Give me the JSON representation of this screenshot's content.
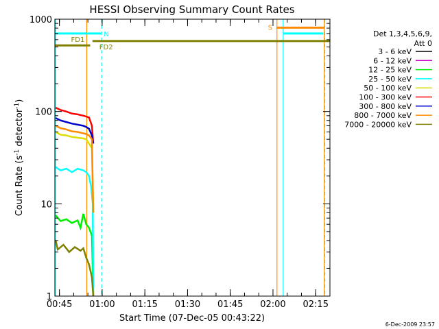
{
  "chart_data": {
    "type": "line",
    "title": "HESSI Observing Summary Count Rates",
    "xlabel": "Start Time (07-Dec-05 00:43:22)",
    "ylabel_main": "Count Rate (s",
    "ylabel_sup1": "-1",
    "ylabel_mid": " detector",
    "ylabel_sup2": "-1",
    "ylabel_end": ")",
    "yscale": "log",
    "ylim": [
      1,
      1000
    ],
    "xlim_minutes": [
      0,
      96.6
    ],
    "x_ticks": [
      {
        "label": "00:45",
        "m": 1.6
      },
      {
        "label": "01:00",
        "m": 16.6
      },
      {
        "label": "01:15",
        "m": 31.6
      },
      {
        "label": "01:30",
        "m": 46.6
      },
      {
        "label": "01:45",
        "m": 61.6
      },
      {
        "label": "02:00",
        "m": 76.6
      },
      {
        "label": "02:15",
        "m": 91.6
      }
    ],
    "y_ticks": [
      {
        "label": "1",
        "v": 1
      },
      {
        "label": "10",
        "v": 10
      },
      {
        "label": "100",
        "v": 100
      },
      {
        "label": "1000",
        "v": 1000
      }
    ],
    "legend_header": [
      "Det 1,3,4,5,6,9,",
      "Att 0"
    ],
    "series": [
      {
        "name": "3 - 6 keV",
        "color": "#000000",
        "values": []
      },
      {
        "name": "6 - 12 keV",
        "color": "#cc00cc",
        "values": []
      },
      {
        "name": "12 - 25 keV",
        "color": "#00ee00",
        "values": [
          [
            0.3,
            7.5
          ],
          [
            2,
            6.5
          ],
          [
            4,
            6.8
          ],
          [
            6,
            6.2
          ],
          [
            8,
            6.6
          ],
          [
            9,
            5.5
          ],
          [
            10,
            7.8
          ],
          [
            11,
            6.0
          ],
          [
            12,
            5.5
          ],
          [
            13,
            4.5
          ],
          [
            13.5,
            1
          ]
        ]
      },
      {
        "name": "25 - 50 keV",
        "color": "#00ffff",
        "values": [
          [
            0.3,
            25
          ],
          [
            2,
            23
          ],
          [
            4,
            24
          ],
          [
            6,
            22
          ],
          [
            8,
            24
          ],
          [
            10,
            23
          ],
          [
            11,
            22
          ],
          [
            12,
            20
          ],
          [
            12.8,
            15
          ],
          [
            13.3,
            10
          ],
          [
            13.5,
            1
          ]
        ]
      },
      {
        "name": "50 - 100 keV",
        "color": "#dddd00",
        "values": [
          [
            0.3,
            60
          ],
          [
            2,
            56
          ],
          [
            4,
            55
          ],
          [
            6,
            53
          ],
          [
            8,
            52
          ],
          [
            10,
            51
          ],
          [
            11,
            50
          ],
          [
            12,
            45
          ],
          [
            13,
            40
          ],
          [
            13.5,
            8
          ]
        ]
      },
      {
        "name": "100 - 300 keV",
        "color": "#ff0000",
        "values": [
          [
            0.3,
            110
          ],
          [
            2,
            104
          ],
          [
            4,
            100
          ],
          [
            6,
            95
          ],
          [
            8,
            93
          ],
          [
            10,
            90
          ],
          [
            11,
            88
          ],
          [
            12,
            86
          ],
          [
            13,
            70
          ],
          [
            13.5,
            45
          ]
        ]
      },
      {
        "name": "300 - 800 keV",
        "color": "#0000cc",
        "values": [
          [
            0.3,
            85
          ],
          [
            2,
            80
          ],
          [
            4,
            77
          ],
          [
            6,
            74
          ],
          [
            8,
            72
          ],
          [
            10,
            70
          ],
          [
            11,
            68
          ],
          [
            12,
            65
          ],
          [
            13,
            55
          ],
          [
            13.5,
            45
          ]
        ]
      },
      {
        "name": "800 - 7000 keV",
        "color": "#ff8c00",
        "values": [
          [
            0.3,
            70
          ],
          [
            2,
            66
          ],
          [
            4,
            64
          ],
          [
            6,
            61
          ],
          [
            8,
            60
          ],
          [
            10,
            58
          ],
          [
            11,
            57
          ],
          [
            12,
            55
          ],
          [
            13,
            50
          ],
          [
            13.5,
            8
          ]
        ]
      },
      {
        "name": "7000 - 20000 keV",
        "color": "#808000",
        "values": [
          [
            0.3,
            4.0
          ],
          [
            1,
            3.2
          ],
          [
            3,
            3.6
          ],
          [
            5,
            3.0
          ],
          [
            7,
            3.4
          ],
          [
            9,
            3.1
          ],
          [
            10,
            3.3
          ],
          [
            11,
            2.6
          ],
          [
            12,
            2.2
          ],
          [
            13,
            1.6
          ],
          [
            13.5,
            1
          ]
        ]
      }
    ],
    "flag_bars": [
      {
        "label": "N",
        "color": "#00ffff",
        "y": 700,
        "x0": 0,
        "x1": 16.2
      },
      {
        "label": "FD1",
        "color": "#808000",
        "y": 520,
        "x0": 0,
        "x1": 12.4
      },
      {
        "label": "FD2",
        "color": "#808000",
        "y": 580,
        "x0": 13.2,
        "x1": 96.6
      },
      {
        "label": "S",
        "color": "#ff8c00",
        "y": 810,
        "x0": 77.8,
        "x1": 94.5
      },
      {
        "label": "",
        "color": "#00ffff",
        "y": 700,
        "x0": 80.2,
        "x1": 94.2
      }
    ],
    "vlines": [
      {
        "m": 0.2,
        "color": "#00ffff",
        "dash": false
      },
      {
        "m": 16.4,
        "color": "#00ffff",
        "dash": true
      },
      {
        "m": 11.2,
        "color": "#ff8c00",
        "dash": false
      },
      {
        "m": 78.0,
        "color": "#ff8c00",
        "dash": false
      },
      {
        "m": 80.2,
        "color": "#00ffff",
        "dash": false
      },
      {
        "m": 94.6,
        "color": "#ff8c00",
        "dash": false
      },
      {
        "m": 94.8,
        "color": "#00ffff",
        "dash": true
      }
    ]
  },
  "footer_date": "6-Dec-2009 23:57"
}
